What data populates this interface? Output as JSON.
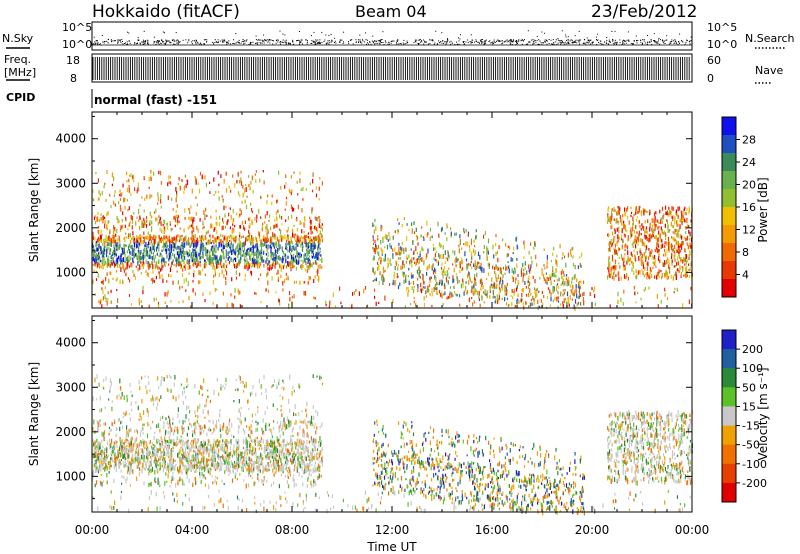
{
  "header": {
    "site": "Hokkaido (fitACF)",
    "beam": "Beam 04",
    "date": "23/Feb/2012"
  },
  "strips": {
    "nsky_label": "N.Sky",
    "nsky_ticks": [
      "10^5",
      "10^0"
    ],
    "nsearch_label": "N.Search",
    "freq_label_1": "Freq.",
    "freq_label_2": "[MHz]",
    "freq_ticks": [
      "18",
      "8"
    ],
    "nave_label": "Nave",
    "nave_ticks": [
      "60",
      "0"
    ],
    "cpid_label": "CPID",
    "cpid_value": "normal (fast) -151"
  },
  "chart_data": [
    {
      "type": "heatmap",
      "title": "",
      "xlabel": "",
      "ylabel": "Slant Range [km]",
      "xlim": [
        "00:00",
        "24:00"
      ],
      "ylim": [
        200,
        4600
      ],
      "x_ticks": [
        "00:00",
        "04:00",
        "08:00",
        "12:00",
        "16:00",
        "20:00",
        "00:00"
      ],
      "y_ticks": [
        1000,
        2000,
        3000,
        4000
      ],
      "colorbar": {
        "label": "Power [dB]",
        "tick_labels": [
          "28",
          "24",
          "20",
          "16",
          "12",
          "8",
          "4"
        ],
        "colors": [
          "#1010ee",
          "#2050c0",
          "#3c8c5a",
          "#6ab04c",
          "#90c030",
          "#f0c000",
          "#f59a00",
          "#ef6a00",
          "#e83a00",
          "#e40000"
        ]
      }
    },
    {
      "type": "heatmap",
      "title": "",
      "xlabel": "Time UT",
      "ylabel": "Slant Range [km]",
      "xlim": [
        "00:00",
        "24:00"
      ],
      "ylim": [
        200,
        4600
      ],
      "x_ticks": [
        "00:00",
        "04:00",
        "08:00",
        "12:00",
        "16:00",
        "20:00",
        "00:00"
      ],
      "y_ticks": [
        1000,
        2000,
        3000,
        4000
      ],
      "colorbar": {
        "label": "Velocity [m s⁻¹]",
        "tick_labels": [
          "200",
          "100",
          "50",
          "15",
          "-15",
          "-50",
          "-100",
          "-200"
        ],
        "colors": [
          "#2020c8",
          "#2060a0",
          "#2a8a3a",
          "#5cc028",
          "#c8c8c8",
          "#f0a000",
          "#f07000",
          "#e84000",
          "#e00000"
        ]
      }
    }
  ]
}
